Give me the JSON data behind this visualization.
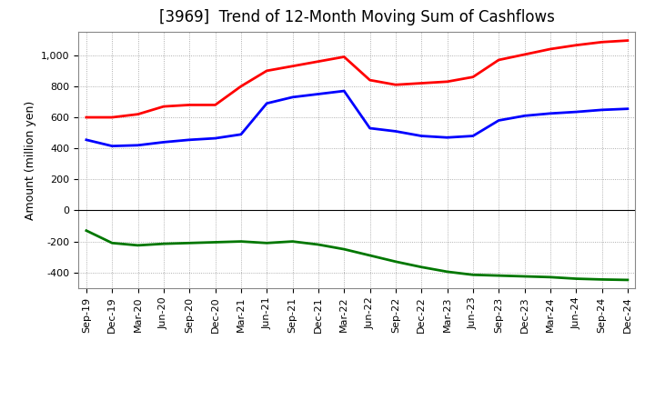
{
  "title": "[3969]  Trend of 12-Month Moving Sum of Cashflows",
  "ylabel": "Amount (million yen)",
  "background_color": "#ffffff",
  "grid_color": "#999999",
  "x_labels": [
    "Sep-19",
    "Dec-19",
    "Mar-20",
    "Jun-20",
    "Sep-20",
    "Dec-20",
    "Mar-21",
    "Jun-21",
    "Sep-21",
    "Dec-21",
    "Mar-22",
    "Jun-22",
    "Sep-22",
    "Dec-22",
    "Mar-23",
    "Jun-23",
    "Sep-23",
    "Dec-23",
    "Mar-24",
    "Jun-24",
    "Sep-24",
    "Dec-24"
  ],
  "operating_cashflow": [
    600,
    600,
    620,
    670,
    680,
    680,
    800,
    900,
    930,
    960,
    990,
    840,
    810,
    820,
    830,
    860,
    970,
    1005,
    1040,
    1065,
    1085,
    1095
  ],
  "investing_cashflow": [
    -130,
    -210,
    -225,
    -215,
    -210,
    -205,
    -200,
    -210,
    -200,
    -220,
    -250,
    -290,
    -330,
    -365,
    -395,
    -415,
    -420,
    -425,
    -430,
    -440,
    -445,
    -448
  ],
  "free_cashflow": [
    455,
    415,
    420,
    440,
    455,
    465,
    490,
    690,
    730,
    750,
    770,
    530,
    510,
    480,
    470,
    480,
    580,
    610,
    625,
    635,
    648,
    655
  ],
  "operating_color": "#ff0000",
  "investing_color": "#007700",
  "free_color": "#0000ff",
  "ylim_min": -500,
  "ylim_max": 1150,
  "yticks": [
    -400,
    -200,
    0,
    200,
    400,
    600,
    800,
    1000
  ],
  "line_width": 2.0,
  "title_fontsize": 12,
  "ylabel_fontsize": 9,
  "tick_fontsize": 8,
  "legend_fontsize": 9
}
